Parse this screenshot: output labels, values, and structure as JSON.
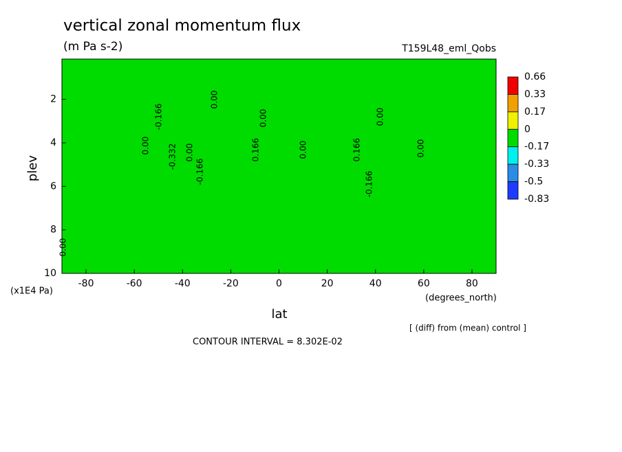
{
  "chart_data": {
    "type": "contour",
    "title": "vertical zonal momentum flux",
    "subtitle": "(m Pa s-2)",
    "run_name": "T159L48_eml_Qobs",
    "x_label": "lat",
    "x_unit": "(degrees_north)",
    "y_label": "plev",
    "y_unit": "(x1E4 Pa)",
    "xlim": [
      -90,
      90
    ],
    "xticks": [
      -80,
      -60,
      -40,
      -20,
      0,
      20,
      40,
      60,
      80
    ],
    "ylim": [
      10,
      0.15
    ],
    "yticks": [
      2,
      4,
      6,
      8,
      10
    ],
    "levels": [
      0.66,
      0.33,
      0.17,
      0,
      -0.17,
      -0.33,
      -0.5,
      -0.83
    ],
    "colors": [
      "#f00000",
      "#f0a000",
      "#f0f000",
      "#00dc00",
      "#00f0f0",
      "#2b8ce6",
      "#1e3cff"
    ],
    "contour_labels": [
      "0.00",
      "-0.166",
      "-0.332",
      "0.00",
      "-0.166",
      "0.00",
      "0.166",
      "0.00",
      "0.00",
      "0.166",
      "-0.166",
      "0.00",
      "0.00",
      "0.00"
    ],
    "contour_interval": "CONTOUR INTERVAL = 8.302E-02",
    "note": "[ (diff) from (mean) control ]"
  }
}
